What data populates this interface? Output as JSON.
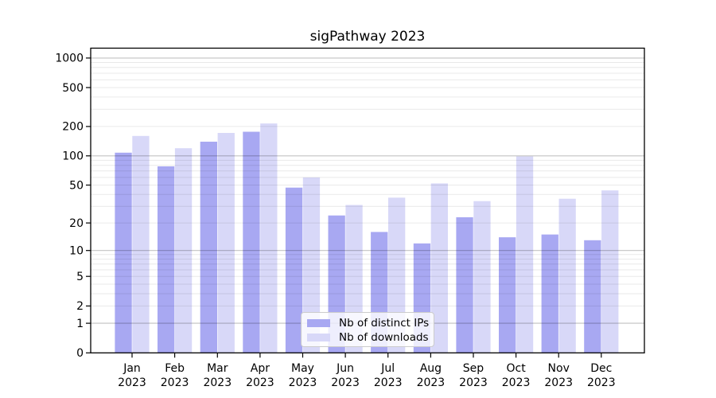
{
  "chart_data": {
    "type": "bar",
    "title": "sigPathway 2023",
    "scale": "log1p",
    "grid": true,
    "legend_position": "lower center",
    "categories": [
      "Jan",
      "Feb",
      "Mar",
      "Apr",
      "May",
      "Jun",
      "Jul",
      "Aug",
      "Sep",
      "Oct",
      "Nov",
      "Dec"
    ],
    "year_label": "2023",
    "yticks": [
      0,
      1,
      2,
      5,
      10,
      20,
      50,
      100,
      200,
      500,
      1000
    ],
    "ylim": [
      0,
      1260
    ],
    "xlabel": "",
    "ylabel": "",
    "series": [
      {
        "name": "Nb of distinct IPs",
        "color": "#a8a8f2",
        "values": [
          108,
          78,
          140,
          177,
          47,
          24,
          16,
          12,
          23,
          14,
          15,
          13
        ]
      },
      {
        "name": "Nb of downloads",
        "color": "#d8d8f8",
        "values": [
          160,
          120,
          172,
          215,
          60,
          31,
          37,
          52,
          34,
          99,
          36,
          44
        ]
      }
    ]
  },
  "legend": {
    "items": [
      {
        "label": "Nb of distinct IPs",
        "color": "#a8a8f2"
      },
      {
        "label": "Nb of downloads",
        "color": "#d8d8f8"
      }
    ]
  }
}
